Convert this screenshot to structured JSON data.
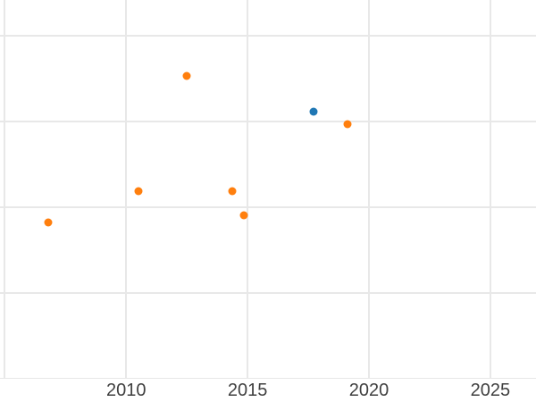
{
  "chart_data": {
    "type": "scatter",
    "title": "",
    "xlabel": "",
    "ylabel": "",
    "grid": true,
    "legend_position": "none",
    "x_tick_labels": [
      "2010",
      "2015",
      "2020",
      "2025"
    ],
    "x_tick_values": [
      2010,
      2015,
      2020,
      2025
    ],
    "x_gridline_values": [
      2005,
      2010,
      2015,
      2020,
      2025
    ],
    "y_gridline_values": [
      0,
      1,
      2,
      3,
      4
    ],
    "y_axis_labels_visible": false,
    "xlim": [
      2004.8,
      2026.88
    ],
    "ylim": [
      0,
      4.42
    ],
    "series": [
      {
        "name": "orange-series",
        "color": "#ff7f0e",
        "points": [
          {
            "x": 2006.8,
            "y": 1.82
          },
          {
            "x": 2010.5,
            "y": 2.19
          },
          {
            "x": 2012.5,
            "y": 3.53
          },
          {
            "x": 2014.35,
            "y": 2.19
          },
          {
            "x": 2014.86,
            "y": 1.91
          },
          {
            "x": 2019.1,
            "y": 2.97
          }
        ]
      },
      {
        "name": "blue-series",
        "color": "#1f77b4",
        "points": [
          {
            "x": 2017.7,
            "y": 3.12
          }
        ]
      }
    ],
    "styles": {
      "background_color": "#ffffff",
      "gridline_color": "#e8e8e8",
      "tick_label_color": "#404040",
      "marker_diameter_px": 9
    }
  }
}
